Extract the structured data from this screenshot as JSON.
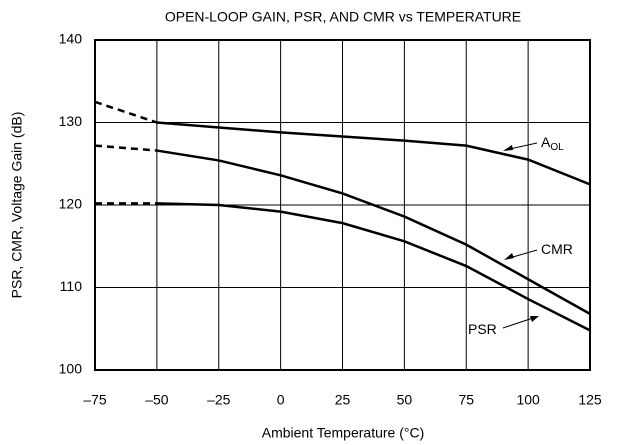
{
  "chart_data": {
    "type": "line",
    "title": "OPEN-LOOP GAIN, PSR, AND CMR vs TEMPERATURE",
    "x_label": "Ambient Temperature (°C)",
    "y_label": "PSR, CMR, Voltage Gain (dB)",
    "x": [
      -75,
      -50,
      -25,
      0,
      25,
      50,
      75,
      100,
      125
    ],
    "series": [
      {
        "label": {
          "main": "A",
          "sub": "OL"
        },
        "color": "#000000",
        "dashed_below": -50,
        "values": [
          132.5,
          130,
          129.4,
          128.8,
          128.3,
          127.8,
          127.2,
          125.5,
          122.5
        ]
      },
      {
        "label": {
          "main": "CMR"
        },
        "color": "#000000",
        "dashed_below": -50,
        "values": [
          127.2,
          126.6,
          125.4,
          123.6,
          121.4,
          118.6,
          115.2,
          111,
          106.8
        ]
      },
      {
        "label": {
          "main": "PSR"
        },
        "color": "#000000",
        "dashed_below": -50,
        "values": [
          120.2,
          120.2,
          120,
          119.2,
          117.8,
          115.6,
          112.6,
          108.6,
          104.8
        ]
      }
    ],
    "xlim": [
      -75,
      125
    ],
    "xticks": [
      {
        "value": -75,
        "label": "–75"
      },
      {
        "value": -50,
        "label": "–50"
      },
      {
        "value": -25,
        "label": "–25"
      },
      0,
      25,
      50,
      75,
      100,
      125
    ],
    "ylim": [
      100,
      140
    ],
    "yticks": [
      100,
      110,
      120,
      130,
      140
    ],
    "grid": true
  }
}
